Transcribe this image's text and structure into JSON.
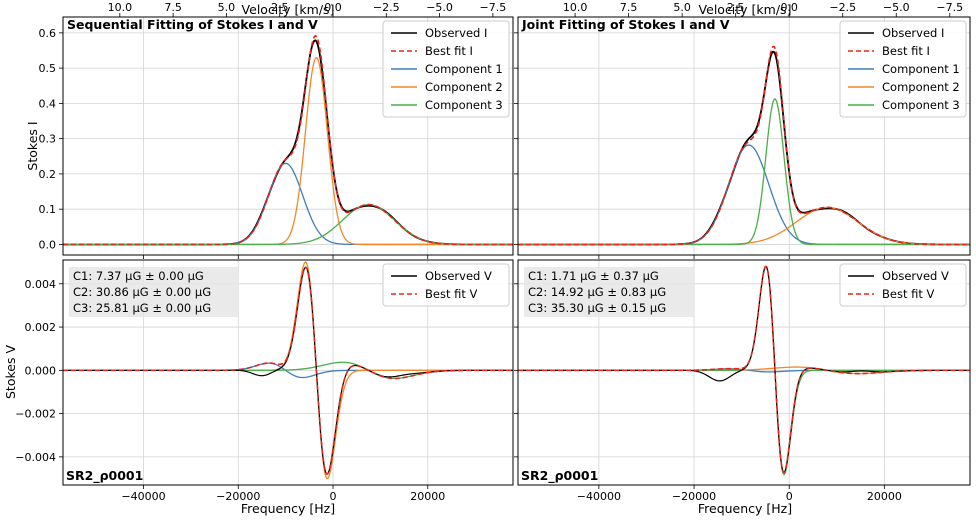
{
  "chart_data": {
    "type": "line",
    "shared_labels": {
      "top_xlabel": "Velocity [km/s]",
      "bottom_xlabel": "Frequency [Hz]",
      "ylabel_top": "Stokes I",
      "ylabel_bottom": "Stokes V",
      "freq_xlim": [
        -57000,
        38000
      ],
      "freq_ticks": [
        -40000,
        -20000,
        0,
        20000
      ],
      "freq_tick_labels": [
        "−40000",
        "−20000",
        "0",
        "20000"
      ],
      "vel_ticks": [
        10.0,
        7.5,
        5.0,
        2.5,
        0.0,
        -2.5,
        -5.0,
        -7.5
      ],
      "vel_tick_labels": [
        "10.0",
        "7.5",
        "5.0",
        "2.5",
        "0.0",
        "−2.5",
        "−5.0",
        "−7.5"
      ],
      "hz_per_kms": -4500,
      "ylimI": [
        -0.03,
        0.645
      ],
      "yticksI": [
        0.0,
        0.1,
        0.2,
        0.3,
        0.4,
        0.5,
        0.6
      ],
      "yticksI_labels": [
        "0.0",
        "0.1",
        "0.2",
        "0.3",
        "0.4",
        "0.5",
        "0.6"
      ],
      "ylimV": [
        -0.0053,
        0.0051
      ],
      "yticksV": [
        -0.004,
        -0.002,
        0.0,
        0.002,
        0.004
      ],
      "yticksV_labels": [
        "−0.004",
        "−0.002",
        "0.000",
        "0.002",
        "0.004"
      ],
      "grid": true,
      "colors": {
        "observed": "#000000",
        "fit": "#e8231b",
        "c1": "#3f7fb9",
        "c2": "#f0892a",
        "c3": "#4aae4a"
      }
    },
    "panels": [
      {
        "title": "Sequential Fitting of Stokes I and V",
        "tag": "SR2_ρ0001",
        "legend_I": [
          "Observed I",
          "Best fit I",
          "Component 1",
          "Component 2",
          "Component 3"
        ],
        "legend_V": [
          "Observed V",
          "Best fit V"
        ],
        "annotations": [
          "C1: 7.37 μG ± 0.00 μG",
          "C2: 30.86 μG ± 0.00 μG",
          "C3: 25.81 μG ± 0.00 μG"
        ],
        "components": [
          {
            "name": "Component 1",
            "center": -10000,
            "sigma": 3600,
            "amp": 0.23,
            "bfield": 7.37
          },
          {
            "name": "Component 2",
            "center": -3500,
            "sigma": 2300,
            "amp": 0.53,
            "bfield": 30.86
          },
          {
            "name": "Component 3",
            "center": 7500,
            "sigma": 5500,
            "amp": 0.113,
            "bfield": 25.81
          }
        ]
      },
      {
        "title": "Joint Fitting of Stokes I and V",
        "tag": "SR2_ρ0001",
        "legend_I": [
          "Observed I",
          "Best fit I",
          "Component 1",
          "Component 2",
          "Component 3"
        ],
        "legend_V": [
          "Observed V",
          "Best fit V"
        ],
        "annotations": [
          "C1: 1.71 μG ± 0.37 μG",
          "C2: 14.92 μG ± 0.83 μG",
          "C3: 35.30 μG ± 0.15 μG"
        ],
        "components": [
          {
            "name": "Component 1",
            "center": -8500,
            "sigma": 4200,
            "amp": 0.282,
            "bfield": 1.71
          },
          {
            "name": "Component 2",
            "center": 8000,
            "sigma": 6500,
            "amp": 0.105,
            "bfield": 14.92
          },
          {
            "name": "Component 3",
            "center": -3000,
            "sigma": 1900,
            "amp": 0.413,
            "bfield": 35.3
          }
        ]
      }
    ]
  }
}
